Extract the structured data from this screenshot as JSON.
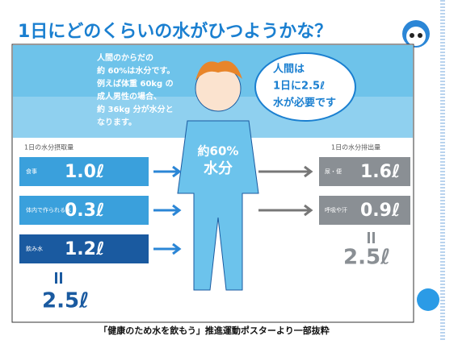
{
  "header": {
    "title": "1日にどのくらいの水がひつようかな？"
  },
  "intro": {
    "lines": [
      "人間のからだの",
      "約 60%は水分です。",
      "例えば体重 60kg の",
      "成人男性の場合、",
      "約 36kg 分が水分と",
      "なります。"
    ]
  },
  "bubble": {
    "lines": [
      "人間は",
      "1日に2.5ℓ",
      "水が必要です"
    ]
  },
  "body": {
    "percent": "約60%",
    "label": "水分"
  },
  "intake": {
    "heading": "1日の水分摂取量",
    "items": [
      {
        "label": "食事",
        "amount": "1.0ℓ"
      },
      {
        "label": "体内で作られる水",
        "amount": "0.3ℓ"
      },
      {
        "label": "飲み水",
        "amount": "1.2ℓ"
      }
    ],
    "total": "2.5ℓ"
  },
  "output": {
    "heading": "1日の水分排出量",
    "items": [
      {
        "label": "尿・便",
        "amount": "1.6ℓ"
      },
      {
        "label": "呼吸や汗",
        "amount": "0.9ℓ"
      }
    ],
    "total": "2.5ℓ"
  },
  "caption": "「健康のため水を飲もう」推進運動ポスターより一部抜粋"
}
